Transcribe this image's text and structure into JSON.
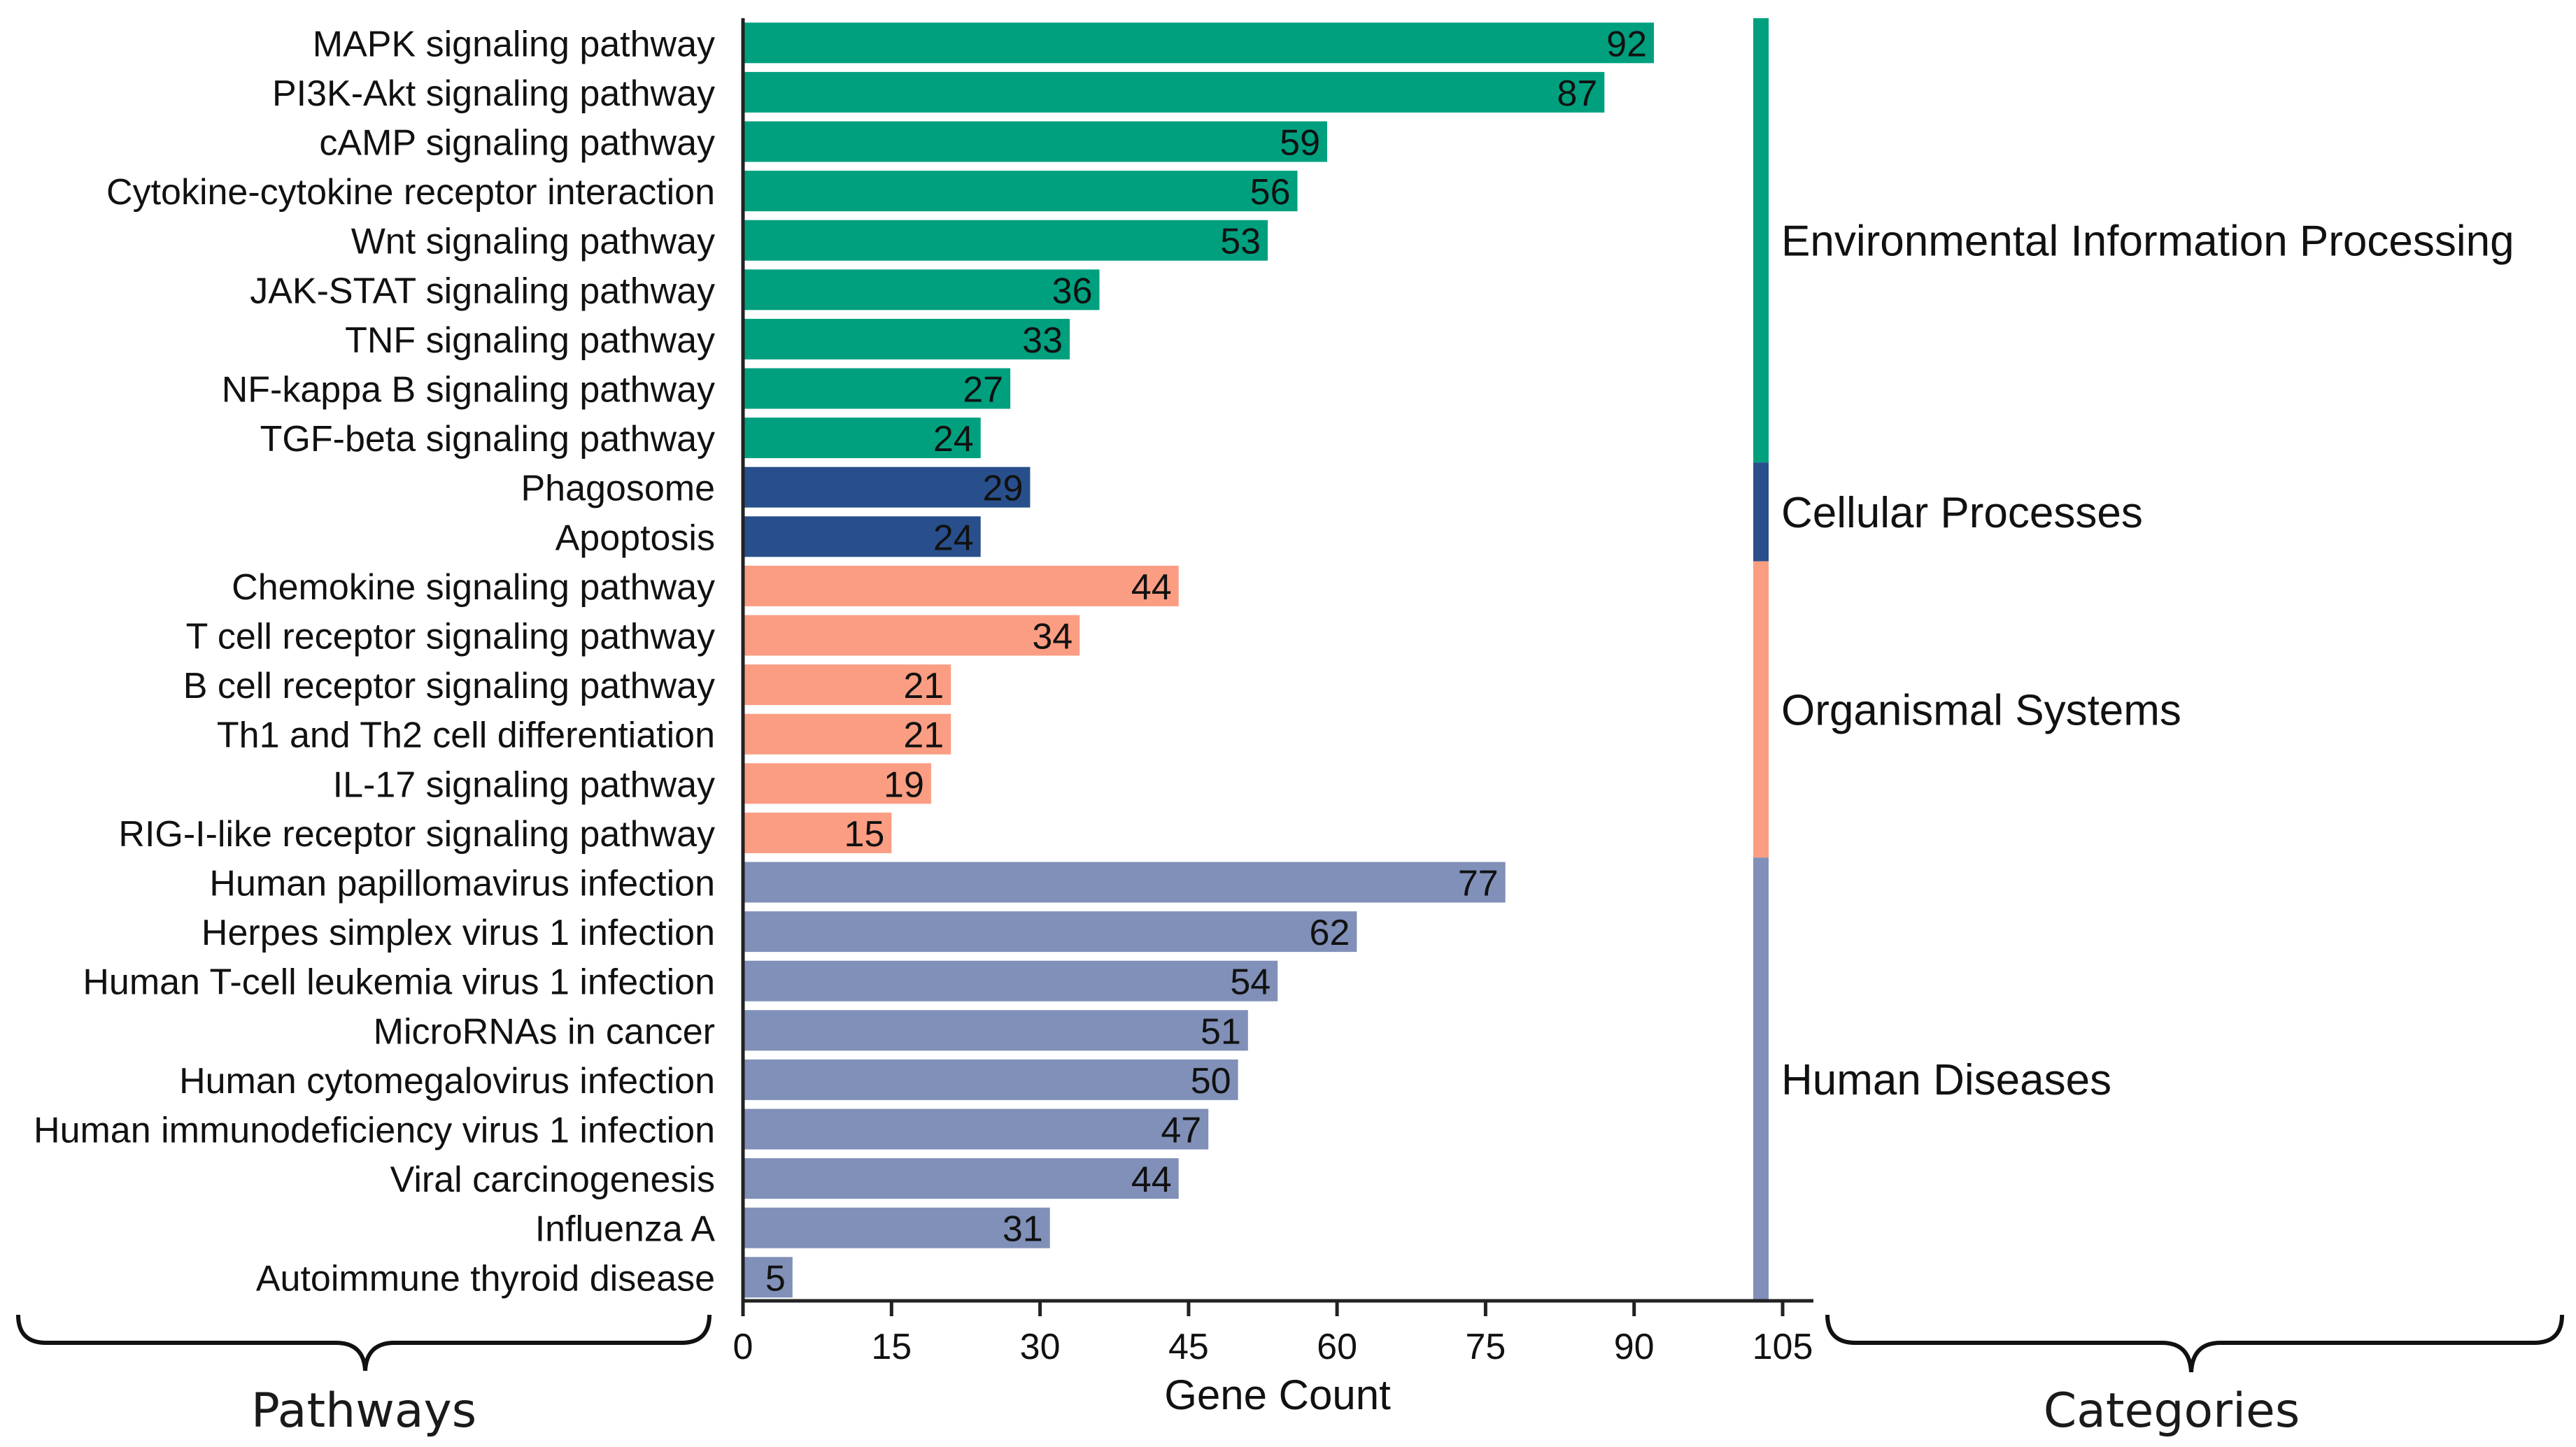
{
  "chart_data": {
    "type": "bar",
    "orientation": "horizontal",
    "xlabel": "Gene Count",
    "xlim": [
      0,
      105
    ],
    "xticks": [
      0,
      15,
      30,
      45,
      60,
      75,
      90,
      105
    ],
    "categories": [
      "MAPK signaling pathway",
      "PI3K-Akt signaling pathway",
      "cAMP signaling pathway",
      "Cytokine-cytokine receptor interaction",
      "Wnt signaling pathway",
      "JAK-STAT signaling pathway",
      "TNF signaling pathway",
      "NF-kappa B signaling pathway",
      "TGF-beta signaling pathway",
      "Phagosome",
      "Apoptosis",
      "Chemokine signaling pathway",
      "T cell receptor signaling pathway",
      "B cell receptor signaling pathway",
      "Th1 and Th2 cell differentiation",
      "IL-17 signaling pathway",
      "RIG-I-like receptor signaling pathway",
      "Human papillomavirus infection",
      "Herpes simplex virus 1 infection",
      "Human T-cell leukemia virus 1 infection",
      "MicroRNAs in cancer",
      "Human cytomegalovirus infection",
      "Human immunodeficiency virus 1 infection",
      "Viral carcinogenesis",
      "Influenza A",
      "Autoimmune thyroid disease"
    ],
    "values": [
      92,
      87,
      59,
      56,
      53,
      36,
      33,
      27,
      24,
      29,
      24,
      44,
      34,
      21,
      21,
      19,
      15,
      77,
      62,
      54,
      51,
      50,
      47,
      44,
      31,
      5
    ],
    "bar_groups": [
      0,
      0,
      0,
      0,
      0,
      0,
      0,
      0,
      0,
      1,
      1,
      2,
      2,
      2,
      2,
      2,
      2,
      3,
      3,
      3,
      3,
      3,
      3,
      3,
      3,
      3
    ],
    "groups": [
      {
        "name": "Environmental Information Processing",
        "color": "#00a07f",
        "count": 9
      },
      {
        "name": "Cellular Processes",
        "color": "#284f8c",
        "count": 2
      },
      {
        "name": "Organismal Systems",
        "color": "#fb9d82",
        "count": 6
      },
      {
        "name": "Human Diseases",
        "color": "#8090b8",
        "count": 9
      }
    ]
  },
  "annotations": {
    "pathways": "Pathways",
    "categories": "Categories"
  }
}
